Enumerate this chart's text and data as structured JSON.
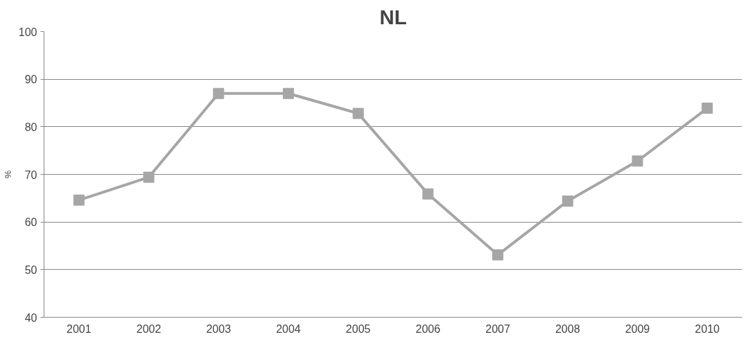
{
  "chart_data": {
    "type": "line",
    "title": "NL",
    "ylabel": "%",
    "categories": [
      "2001",
      "2002",
      "2003",
      "2004",
      "2005",
      "2006",
      "2007",
      "2008",
      "2009",
      "2010"
    ],
    "series": [
      {
        "color": "#a6a6a6",
        "values": [
          64.6,
          69.4,
          87.0,
          87.0,
          82.8,
          65.9,
          53.1,
          64.4,
          72.8,
          83.9
        ]
      }
    ],
    "ylim": [
      40,
      100
    ],
    "yticks": [
      40,
      50,
      60,
      70,
      80,
      90,
      100
    ],
    "grid": "y",
    "marker": "square",
    "line_style": "solid"
  }
}
